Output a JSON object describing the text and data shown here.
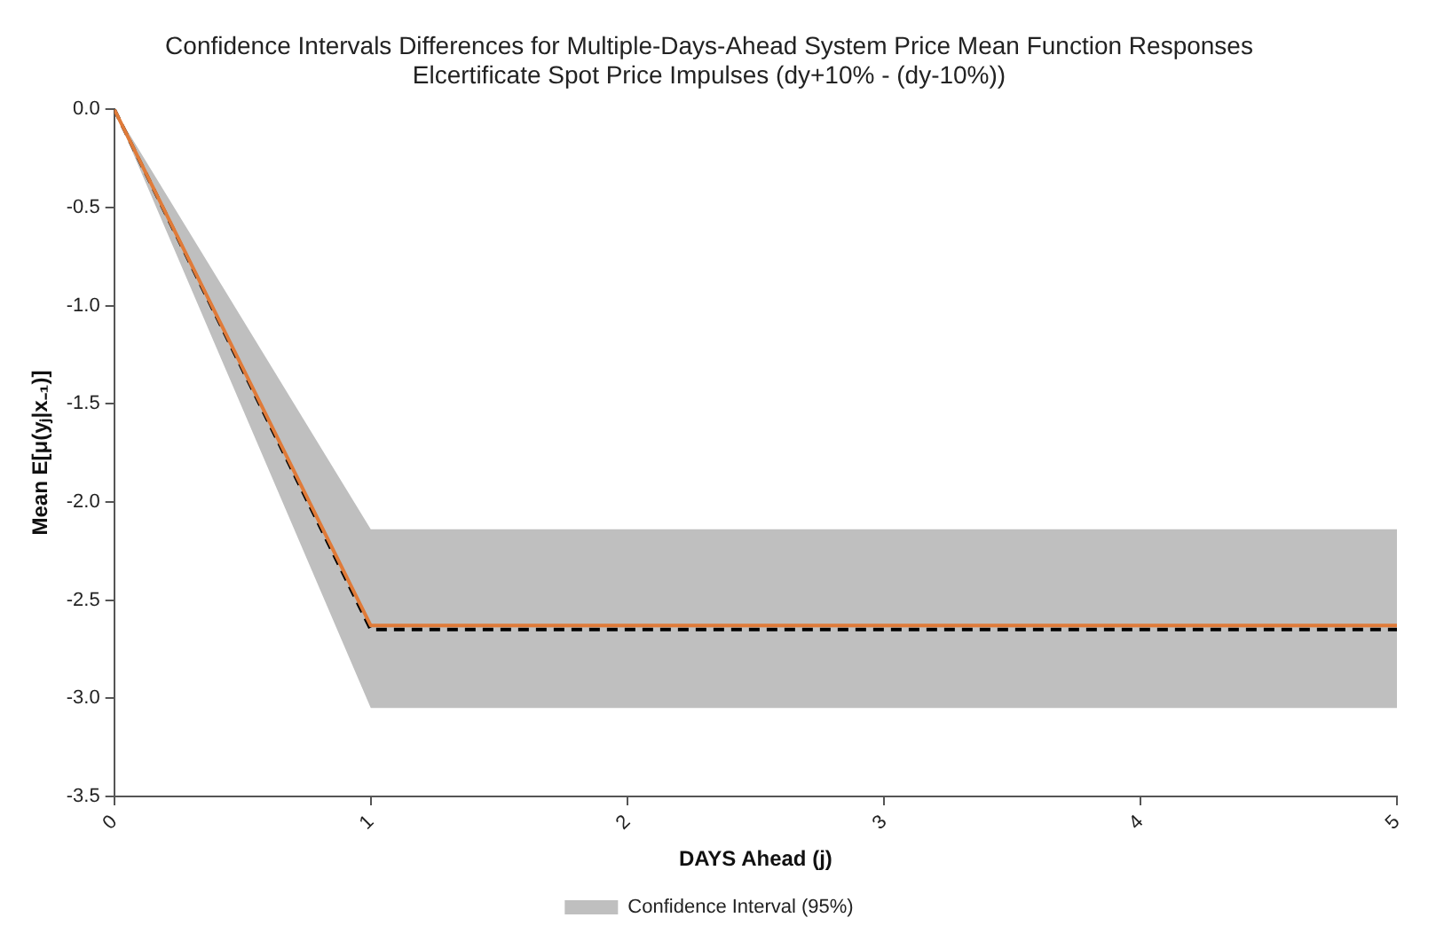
{
  "chart_data": {
    "type": "line",
    "title": "Confidence Intervals Differences for Multiple-Days-Ahead System Price Mean Function Responses",
    "subtitle": "Elcertificate Spot Price Impulses (dy+10% - (dy-10%))",
    "xlabel": "DAYS Ahead (j)",
    "ylabel": "Mean E[μ(yⱼ|x₋₁)]",
    "x": [
      0,
      1,
      2,
      3,
      4,
      5
    ],
    "series": [
      {
        "type": "line",
        "name": "Confidence Interval (95%)",
        "color": "#bfbfbf",
        "values": [
          null,
          null,
          null,
          null,
          null,
          null
        ],
        "upper": [
          0,
          -2.14,
          -2.14,
          -2.14,
          -2.14,
          -2.14
        ],
        "lower": [
          0,
          -3.05,
          -3.05,
          -3.05,
          -3.05,
          -3.05
        ]
      },
      {
        "type": "line",
        "color": "#e07b39",
        "values": [
          0,
          -2.63,
          -2.63,
          -2.63,
          -2.63,
          -2.63
        ]
      },
      {
        "type": "line",
        "color": "#000000",
        "line_style": "dashed",
        "values": [
          0,
          -2.65,
          -2.65,
          -2.65,
          -2.65,
          -2.65
        ]
      }
    ],
    "xlim": [
      0,
      5
    ],
    "xticks": [
      0,
      1,
      2,
      3,
      4,
      5
    ],
    "ylim": [
      -3.5,
      0
    ],
    "yticks": [
      {
        "value": -3.5,
        "label": "-3.5"
      },
      {
        "value": -3,
        "label": "-3.0"
      },
      {
        "value": -2.5,
        "label": "-2.5"
      },
      {
        "value": -2,
        "label": "-2.0"
      },
      {
        "value": -1.5,
        "label": "-1.5"
      },
      {
        "value": -1,
        "label": "-1.0"
      },
      {
        "value": -0.5,
        "label": "-0.5"
      },
      {
        "value": 0,
        "label": "0.0"
      }
    ],
    "grid": false,
    "legend": "bottom",
    "marker": "none"
  }
}
